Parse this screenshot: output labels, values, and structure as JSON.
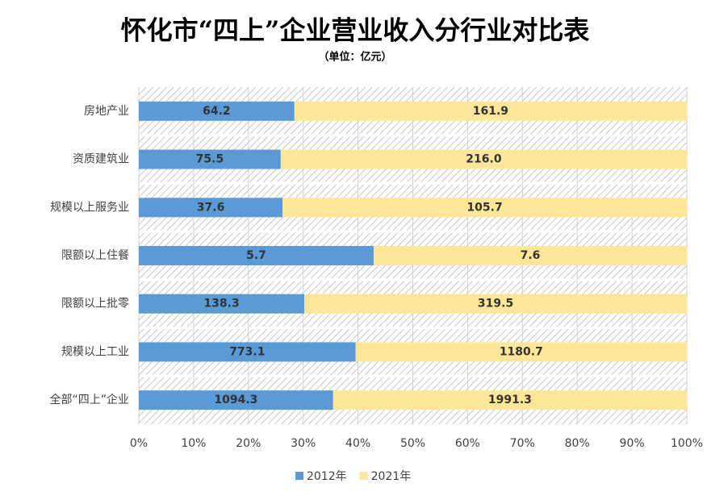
{
  "chart_data": {
    "type": "bar",
    "orientation": "horizontal",
    "stacking": "percent",
    "title": "怀化市“四上”企业营业收入分行业对比表",
    "subtitle": "（单位：亿元）",
    "categories": [
      "房地产业",
      "资质建筑业",
      "规模以上服务业",
      "限额以上住餐",
      "限额以上批零",
      "规模以上工业",
      "全部“四上”企业"
    ],
    "series": [
      {
        "name": "2012年",
        "color": "#5b9bd5",
        "values": [
          64.2,
          75.5,
          37.6,
          5.7,
          138.3,
          773.1,
          1094.3
        ],
        "value_labels": [
          "64.2",
          "75.5",
          "37.6",
          "5.7",
          "138.3",
          "773.1",
          "1094.3"
        ]
      },
      {
        "name": "2021年",
        "color": "#ffe699",
        "values": [
          161.9,
          216.0,
          105.7,
          7.6,
          319.5,
          1180.7,
          1991.3
        ],
        "value_labels": [
          "161.9",
          "216.0",
          "105.7",
          "7.6",
          "319.5",
          "1180.7",
          "1991.3"
        ]
      }
    ],
    "xlim": [
      0,
      100
    ],
    "xticks": [
      {
        "value": 0,
        "label": "0%"
      },
      {
        "value": 10,
        "label": "10%"
      },
      {
        "value": 20,
        "label": "20%"
      },
      {
        "value": 30,
        "label": "30%"
      },
      {
        "value": 40,
        "label": "40%"
      },
      {
        "value": 50,
        "label": "50%"
      },
      {
        "value": 60,
        "label": "60%"
      },
      {
        "value": 70,
        "label": "70%"
      },
      {
        "value": 80,
        "label": "80%"
      },
      {
        "value": 90,
        "label": "90%"
      },
      {
        "value": 100,
        "label": "100%"
      }
    ],
    "grid": true,
    "legend": "bottom"
  }
}
